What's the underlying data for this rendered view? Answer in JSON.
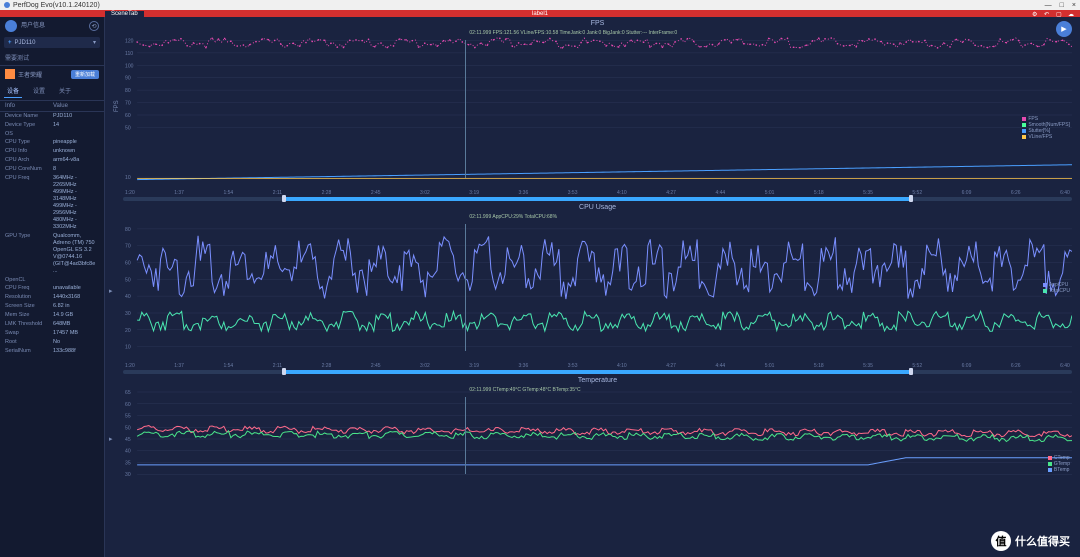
{
  "window": {
    "title": "PerfDog Evo(v10.1.240120)"
  },
  "redbar": {
    "tab": "SceneTab",
    "label": "label1"
  },
  "user": {
    "line1": "用户信息",
    "line2": ""
  },
  "device_select": {
    "label": "PJD110"
  },
  "section": "需要测试",
  "app": {
    "name": "王者荣耀",
    "badge": "重新加载"
  },
  "tabs": {
    "t1": "设备",
    "t2": "设置",
    "t3": "关于"
  },
  "info_header": {
    "k": "Info",
    "v": "Value"
  },
  "info": [
    {
      "k": "Device Name",
      "v": "PJD110"
    },
    {
      "k": "Device Type",
      "v": "14"
    },
    {
      "k": "OS",
      "v": ""
    },
    {
      "k": "CPU Type",
      "v": "pineapple"
    },
    {
      "k": "CPU Info",
      "v": "unknown"
    },
    {
      "k": "CPU Arch",
      "v": "arm64-v8a"
    },
    {
      "k": "CPU CoreNum",
      "v": "8"
    },
    {
      "k": "CPU Freq",
      "v": "364MHz - 2265MHz\n499MHz - 3148MHz\n499MHz - 2956MHz\n480MHz - 3302MHz"
    },
    {
      "k": "GPU Type",
      "v": "Qualcomm, Adreno (TM) 750\nOpenGL ES 3.2\nV@0744.16\n(GIT@4ad3bfc8e ..."
    },
    {
      "k": "OpenCL",
      "v": ""
    },
    {
      "k": "CPU Freq",
      "v": "unavailable"
    },
    {
      "k": "Resolution",
      "v": "1440x3168"
    },
    {
      "k": "Screen Size",
      "v": "6.82 in"
    },
    {
      "k": "Mem Size",
      "v": "14.9 GB"
    },
    {
      "k": "LMK Threshold",
      "v": "648MB"
    },
    {
      "k": "Swap",
      "v": "17457 MB"
    },
    {
      "k": "Root",
      "v": "No"
    },
    {
      "k": "SerialNum",
      "v": "133c988f"
    }
  ],
  "x_ticks": [
    "1:20",
    "1:37",
    "1:54",
    "2:11",
    "2:28",
    "2:45",
    "3:02",
    "3:19",
    "3:36",
    "3:53",
    "4:10",
    "4:27",
    "4:44",
    "5:01",
    "5:18",
    "5:35",
    "5:52",
    "6:09",
    "6:26",
    "6:40"
  ],
  "fps": {
    "title": "FPS",
    "ylabel": "FPS",
    "yticks": [
      "10",
      "50",
      "60",
      "70",
      "80",
      "90",
      "100",
      "110",
      "120"
    ],
    "ylim": [
      0,
      130
    ],
    "cursor_x": 0.36,
    "tooltip": "02:11.999\nFPS:121.56\nVLine/FPS:10.58\nTimeJank:0\nJank:0\nBigJank:0\nStutter:---\nInterFrame:0",
    "legend": [
      {
        "c": "#e64ab0",
        "t": "FPS"
      },
      {
        "c": "#4aff9a",
        "t": "Smooth[Num/FPS]"
      },
      {
        "c": "#4a9fff",
        "t": "Stutter[%]"
      },
      {
        "c": "#ffc84a",
        "t": "VLine/FPS"
      }
    ],
    "series": {
      "fps_color": "#e64ab0",
      "fps_mean": 120,
      "fps_noise": 2,
      "blue_color": "#4a9fff",
      "blue_start": 8,
      "blue_end": 20,
      "yellow_color": "#ffc84a",
      "yellow_val": 9
    }
  },
  "cpu": {
    "title": "CPU Usage",
    "yticks": [
      "10",
      "20",
      "30",
      "40",
      "50",
      "60",
      "70",
      "80"
    ],
    "ylim": [
      0,
      90
    ],
    "cursor_x": 0.36,
    "tooltip": "02:11.999\nAppCPU:29%\nTotalCPU:68%",
    "legend": [
      {
        "c": "#7a8fff",
        "t": "AppCPU"
      },
      {
        "c": "#4ae6b0",
        "t": "TotalCPU"
      }
    ],
    "series": {
      "total_color": "#7a8fff",
      "total_mean": 65,
      "total_noise": 8,
      "app_color": "#4ae6b0",
      "app_mean": 28,
      "app_noise": 3
    }
  },
  "temp": {
    "title": "Temperature",
    "yticks": [
      "30",
      "35",
      "40",
      "45",
      "50",
      "55",
      "60",
      "65"
    ],
    "ylim": [
      25,
      68
    ],
    "cursor_x": 0.36,
    "tooltip": "02:11.999\nCTemp:49°C\nGTemp:48°C\nBTemp:35°C",
    "legend": [
      {
        "c": "#ff6a8a",
        "t": "CTemp"
      },
      {
        "c": "#4ae68a",
        "t": "GTemp"
      },
      {
        "c": "#6a9fff",
        "t": "BTemp"
      }
    ],
    "series": {
      "c_color": "#ff6a8a",
      "c_start": 50,
      "c_end": 48,
      "c_noise": 1.5,
      "g_color": "#4ae68a",
      "g_start": 48,
      "g_end": 46,
      "g_noise": 1.5,
      "b_color": "#6a9fff",
      "b_start": 34,
      "b_mid": 34,
      "b_end": 37
    }
  },
  "watermark": {
    "icon": "值",
    "text": "什么值得买"
  }
}
